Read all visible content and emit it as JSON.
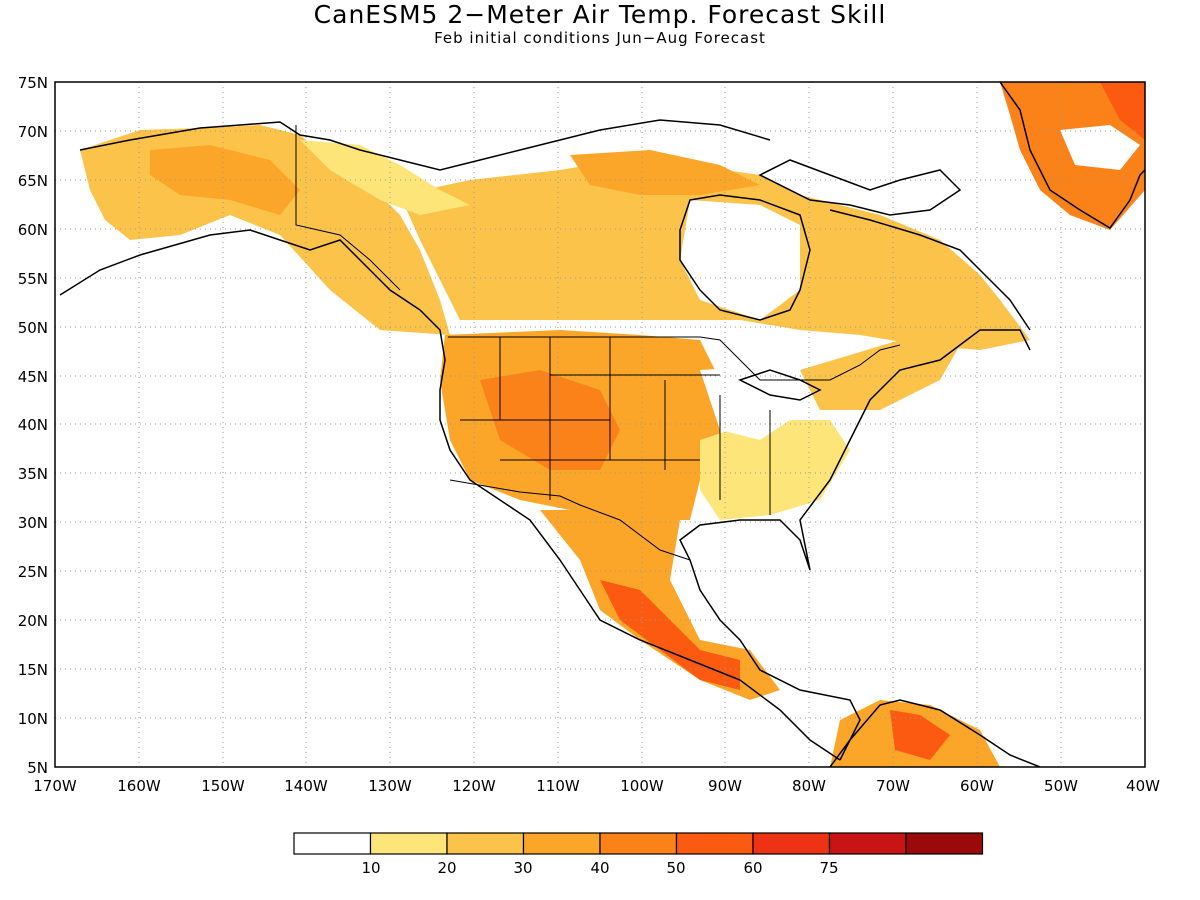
{
  "title": "CanESM5 2−Meter Air Temp. Forecast Skill",
  "subtitle": "Feb initial conditions  Jun−Aug Forecast",
  "map": {
    "lat_labels": [
      "75N",
      "70N",
      "65N",
      "60N",
      "55N",
      "50N",
      "45N",
      "40N",
      "35N",
      "30N",
      "25N",
      "20N",
      "15N",
      "10N",
      "5N"
    ],
    "lon_labels": [
      "170W",
      "160W",
      "150W",
      "140W",
      "130W",
      "120W",
      "110W",
      "100W",
      "90W",
      "80W",
      "70W",
      "60W",
      "50W",
      "40W"
    ],
    "lat_range": [
      5,
      75
    ],
    "lon_range": [
      -170,
      -40
    ],
    "gridlines": "dotted"
  },
  "colorbar": {
    "colors": [
      "#ffffff",
      "#fde57a",
      "#fcc34a",
      "#fba629",
      "#fb8218",
      "#fb5a10",
      "#ee3214",
      "#c81414",
      "#9b0a0a"
    ],
    "tick_labels": [
      "10",
      "20",
      "30",
      "40",
      "50",
      "60",
      "75"
    ]
  }
}
